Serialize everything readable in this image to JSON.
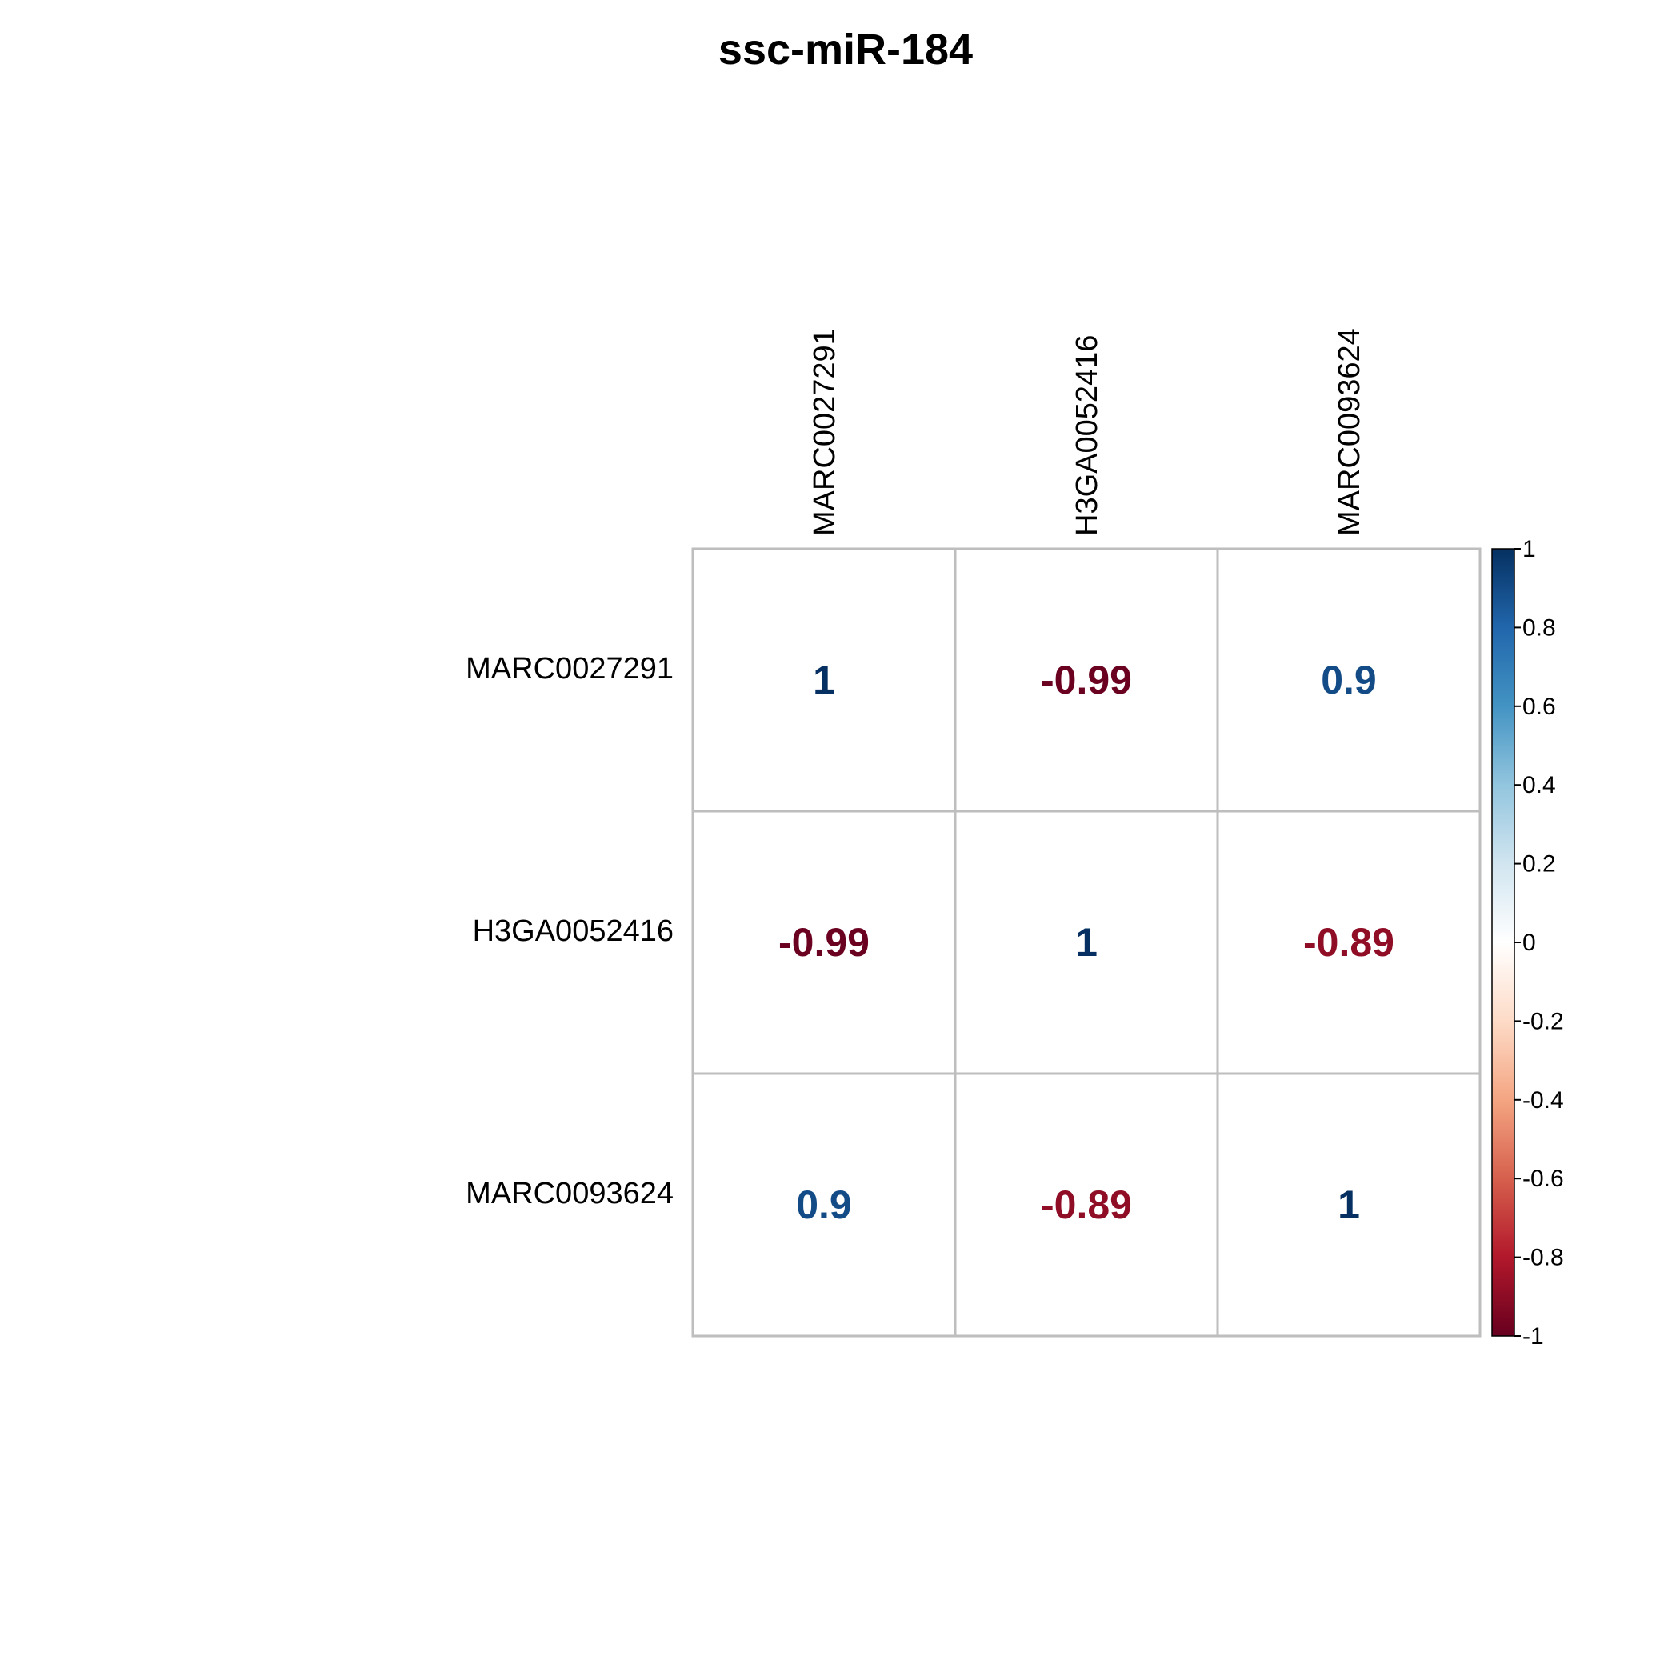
{
  "chart_data": {
    "type": "heatmap",
    "title": "ssc-miR-184",
    "rows": [
      "MARC0027291",
      "H3GA0052416",
      "MARC0093624"
    ],
    "cols": [
      "MARC0027291",
      "H3GA0052416",
      "MARC0093624"
    ],
    "values": [
      [
        1,
        -0.99,
        0.9
      ],
      [
        -0.99,
        1,
        -0.89
      ],
      [
        0.9,
        -0.89,
        1
      ]
    ],
    "value_labels": [
      [
        "1",
        "-0.99",
        "0.9"
      ],
      [
        "-0.99",
        "1",
        "-0.89"
      ],
      [
        "0.9",
        "-0.89",
        "1"
      ]
    ],
    "colorbar": {
      "range": [
        -1,
        1
      ],
      "ticks": [
        "1",
        "0.8",
        "0.6",
        "0.4",
        "0.2",
        "0",
        "-0.2",
        "-0.4",
        "-0.6",
        "-0.8",
        "-1"
      ],
      "tick_values": [
        1,
        0.8,
        0.6,
        0.4,
        0.2,
        0,
        -0.2,
        -0.4,
        -0.6,
        -0.8,
        -1
      ],
      "palette": [
        "#67001F",
        "#B2182B",
        "#D6604D",
        "#F4A582",
        "#FDDBC7",
        "#FFFFFF",
        "#D1E5F0",
        "#92C5DE",
        "#4393C3",
        "#2166AC",
        "#053061"
      ]
    },
    "grid_color": "#BEBEBE"
  }
}
